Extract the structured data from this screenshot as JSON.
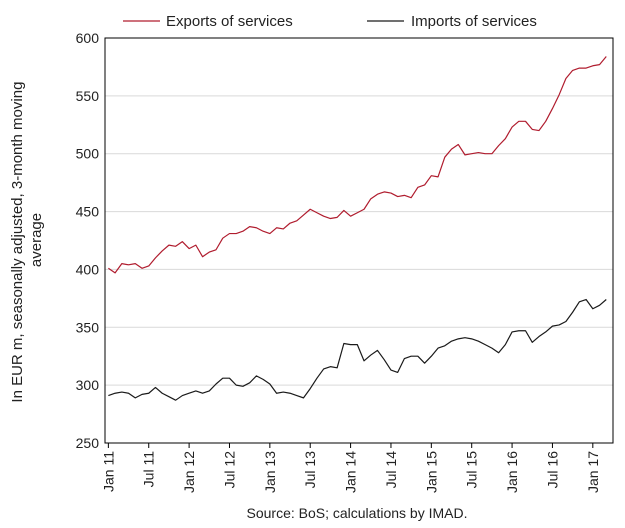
{
  "chart_data": {
    "type": "line",
    "ylabel_lines": [
      "In EUR m, seasonally adjusted, 3-month moving",
      "average"
    ],
    "source": "Source: BoS; calculations by IMAD.",
    "ylim": [
      250,
      600
    ],
    "yticks": [
      250,
      300,
      350,
      400,
      450,
      500,
      550,
      600
    ],
    "grid": true,
    "legend_position": "top",
    "x_tick_labels": [
      "Jan 11",
      "Jul 11",
      "Jan 12",
      "Jul 12",
      "Jan 13",
      "Jul 13",
      "Jan 14",
      "Jul 14",
      "Jan 15",
      "Jul 15",
      "Jan 16",
      "Jul 16",
      "Jan 17"
    ],
    "x_start": "Jan 11",
    "x_end": "Jun 17",
    "series": [
      {
        "name": "Exports of services",
        "color": "#b01c2e",
        "values": [
          401,
          397,
          405,
          404,
          405,
          401,
          403,
          410,
          416,
          421,
          420,
          424,
          418,
          421,
          411,
          415,
          417,
          427,
          431,
          431,
          433,
          437,
          436,
          433,
          431,
          436,
          435,
          440,
          442,
          447,
          452,
          449,
          446,
          444,
          445,
          451,
          446,
          449,
          452,
          461,
          465,
          467,
          466,
          463,
          464,
          462,
          471,
          473,
          481,
          480,
          497,
          504,
          508,
          499,
          500,
          501,
          500,
          500,
          507,
          513,
          523,
          528,
          528,
          521,
          520,
          528,
          539,
          551,
          565,
          572,
          574,
          574,
          576,
          577,
          584
        ]
      },
      {
        "name": "Imports of services",
        "color": "#1a1a1a",
        "values": [
          291,
          293,
          294,
          293,
          289,
          292,
          293,
          298,
          293,
          290,
          287,
          291,
          293,
          295,
          293,
          295,
          301,
          306,
          306,
          300,
          299,
          302,
          308,
          305,
          301,
          293,
          294,
          293,
          291,
          289,
          297,
          306,
          314,
          316,
          315,
          336,
          335,
          335,
          321,
          326,
          330,
          322,
          313,
          311,
          323,
          325,
          325,
          319,
          325,
          332,
          334,
          338,
          340,
          341,
          340,
          338,
          335,
          332,
          328,
          335,
          346,
          347,
          347,
          337,
          342,
          346,
          351,
          352,
          355,
          363,
          372,
          374,
          366,
          369,
          374
        ]
      }
    ]
  }
}
